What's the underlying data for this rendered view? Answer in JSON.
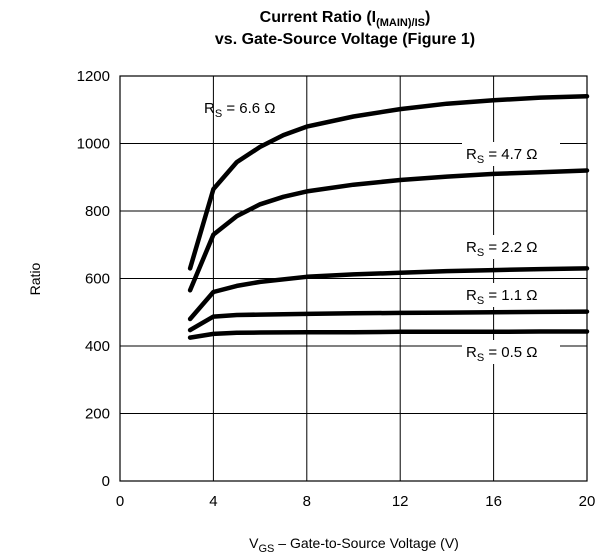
{
  "chart_data": {
    "type": "line",
    "title_line1_prefix": "Current Ratio (I",
    "title_line1_sub": "(MAIN)/IS",
    "title_line1_suffix": ")",
    "title_line2": "vs. Gate-Source Voltage (Figure 1)",
    "ylabel": "Ratio",
    "xlabel_main": "V",
    "xlabel_sub": "GS",
    "xlabel_rest": " – Gate-to-Source Voltage (V)",
    "xlim": [
      0,
      20
    ],
    "ylim": [
      0,
      1200
    ],
    "x_ticks": [
      "0",
      "4",
      "8",
      "12",
      "16",
      "20"
    ],
    "y_ticks": [
      "0",
      "200",
      "400",
      "600",
      "800",
      "1000",
      "1200"
    ],
    "grid": true,
    "series": [
      {
        "name_main": "R",
        "name_sub": "S",
        "name_rest": " = 6.6 Ω",
        "x": [
          3,
          4,
          5,
          6,
          7,
          8,
          10,
          12,
          14,
          16,
          18,
          20
        ],
        "y": [
          630,
          865,
          945,
          990,
          1025,
          1050,
          1080,
          1102,
          1118,
          1128,
          1136,
          1140
        ]
      },
      {
        "name_main": "R",
        "name_sub": "S",
        "name_rest": " = 4.7 Ω",
        "x": [
          3,
          4,
          5,
          6,
          7,
          8,
          10,
          12,
          14,
          16,
          18,
          20
        ],
        "y": [
          565,
          730,
          785,
          820,
          842,
          858,
          878,
          892,
          902,
          910,
          915,
          920
        ]
      },
      {
        "name_main": "R",
        "name_sub": "S",
        "name_rest": " = 2.2 Ω",
        "x": [
          3,
          4,
          5,
          6,
          8,
          10,
          12,
          14,
          16,
          18,
          20
        ],
        "y": [
          480,
          560,
          578,
          590,
          605,
          612,
          617,
          622,
          625,
          628,
          630
        ]
      },
      {
        "name_main": "R",
        "name_sub": "S",
        "name_rest": " = 1.1 Ω",
        "x": [
          3,
          4,
          5,
          6,
          8,
          10,
          12,
          14,
          16,
          18,
          20
        ],
        "y": [
          447,
          487,
          492,
          493,
          495,
          497,
          498,
          499,
          500,
          501,
          502
        ]
      },
      {
        "name_main": "R",
        "name_sub": "S",
        "name_rest": " = 0.5 Ω",
        "x": [
          3,
          4,
          5,
          6,
          8,
          10,
          12,
          14,
          16,
          18,
          20
        ],
        "y": [
          425,
          436,
          439,
          440,
          441,
          441,
          442,
          442,
          442,
          443,
          443
        ]
      }
    ]
  }
}
